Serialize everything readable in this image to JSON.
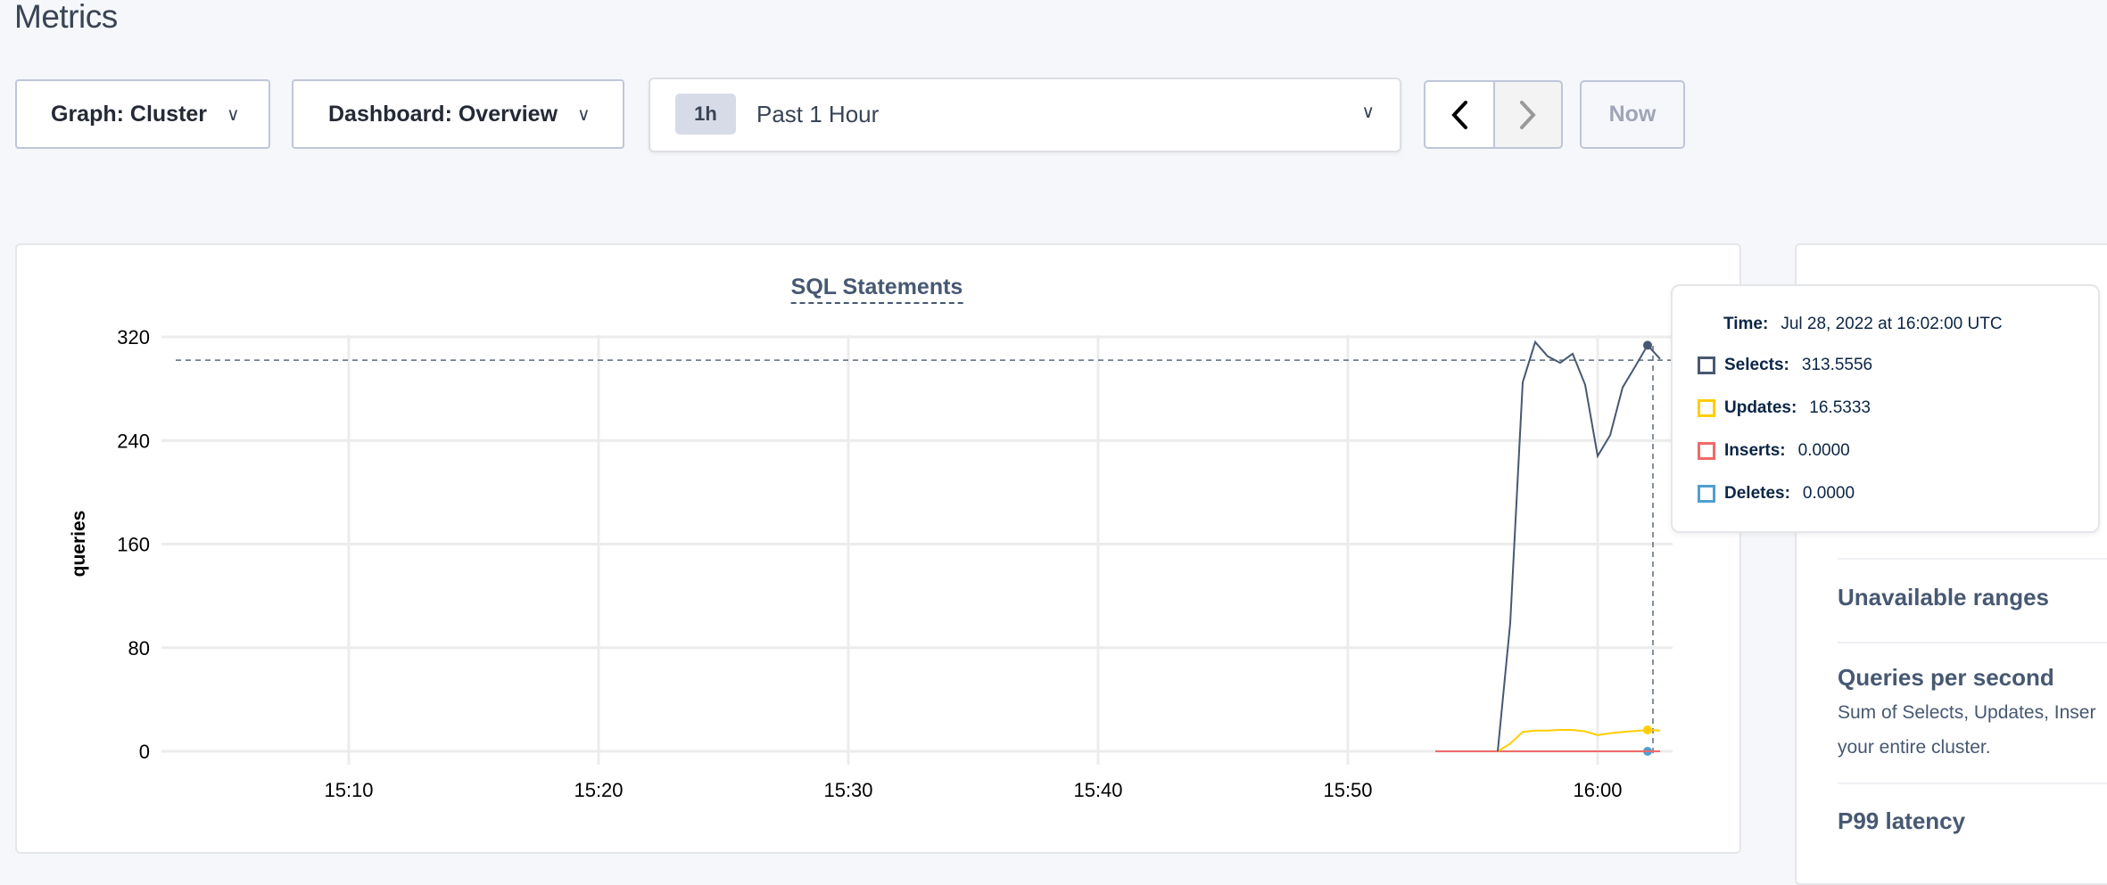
{
  "page": {
    "title": "Metrics"
  },
  "toolbar": {
    "graph_label": "Graph: Cluster",
    "dashboard_label": "Dashboard: Overview",
    "time_badge": "1h",
    "time_label": "Past 1 Hour",
    "prev_icon": "chevron-left-icon",
    "next_icon": "chevron-right-icon",
    "dropdown_icon": "chevron-down-icon",
    "now_label": "Now"
  },
  "tooltip": {
    "time_label": "Time:",
    "time_value": "Jul 28, 2022 at 16:02:00 UTC",
    "rows": [
      {
        "label": "Selects:",
        "value": "313.5556",
        "color": "#475872"
      },
      {
        "label": "Updates:",
        "value": "16.5333",
        "color": "#ffcd02"
      },
      {
        "label": "Inserts:",
        "value": "0.0000",
        "color": "#f16969"
      },
      {
        "label": "Deletes:",
        "value": "0.0000",
        "color": "#4e9fd1"
      }
    ]
  },
  "right_panel": {
    "items": [
      {
        "title": "Unavailable ranges",
        "description": ""
      },
      {
        "title": "Queries per second",
        "description_lines": [
          "Sum of Selects, Updates, Inser",
          "your entire cluster."
        ]
      },
      {
        "title": "P99 latency"
      }
    ]
  },
  "chart_data": {
    "type": "line",
    "title": "SQL Statements",
    "ylabel": "queries",
    "xlabel": "",
    "ylim": [
      0,
      320
    ],
    "yticks": [
      "0",
      "80",
      "160",
      "240",
      "320"
    ],
    "xticks": [
      "15:10",
      "15:20",
      "15:30",
      "15:40",
      "15:50",
      "16:00"
    ],
    "xlim": [
      "15:02:30",
      "16:03:00"
    ],
    "grid": true,
    "hover_time": "16:02:00",
    "hover_value_y": 302,
    "x": [
      "15:53:30",
      "15:54:00",
      "15:54:30",
      "15:55:00",
      "15:55:30",
      "15:56:00",
      "15:56:30",
      "15:57:00",
      "15:57:30",
      "15:58:00",
      "15:58:30",
      "15:59:00",
      "15:59:30",
      "16:00:00",
      "16:00:30",
      "16:01:00",
      "16:01:30",
      "16:02:00",
      "16:02:30"
    ],
    "series": [
      {
        "name": "Selects",
        "color": "#475872",
        "values": [
          null,
          null,
          null,
          null,
          null,
          0,
          99,
          285,
          316,
          305,
          300,
          307,
          283,
          228,
          244,
          281,
          297,
          313.5556,
          303
        ]
      },
      {
        "name": "Updates",
        "color": "#ffcd02",
        "values": [
          null,
          null,
          null,
          null,
          null,
          0,
          6,
          15,
          16,
          16,
          16.5,
          16.5,
          15.4,
          12.5,
          14,
          15,
          15.6,
          16.5333,
          16
        ]
      },
      {
        "name": "Inserts",
        "color": "#f16969",
        "values": [
          0,
          0,
          0,
          0,
          0,
          0,
          0,
          0,
          0,
          0,
          0,
          0,
          0,
          0,
          0,
          0,
          0,
          0,
          0
        ]
      },
      {
        "name": "Deletes",
        "color": "#4e9fd1",
        "values": [
          0,
          0,
          0,
          0,
          0,
          0,
          0,
          0,
          0,
          0,
          0,
          0,
          0,
          0,
          0,
          0,
          0,
          0,
          0
        ]
      }
    ]
  }
}
